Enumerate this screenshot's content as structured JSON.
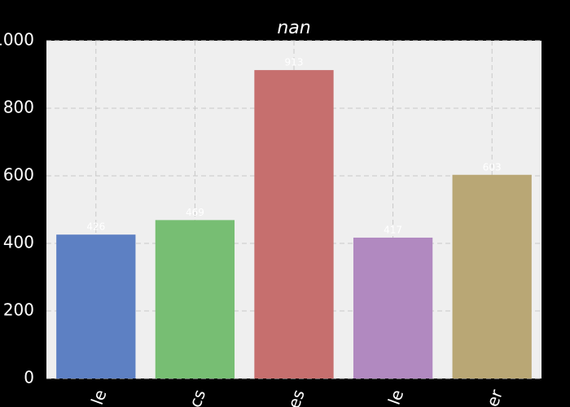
{
  "chart_data": {
    "type": "bar",
    "title": "nan",
    "categories": [
      "le",
      "cs",
      "es",
      "le",
      "er"
    ],
    "values": [
      426,
      469,
      913,
      417,
      603
    ],
    "colors": [
      "#5d80c3",
      "#77be73",
      "#c66f6e",
      "#b189c0",
      "#b9a775"
    ],
    "ylim": [
      0,
      1000
    ],
    "yticks": [
      0,
      200,
      400,
      600,
      800,
      1000
    ],
    "grid": true
  }
}
